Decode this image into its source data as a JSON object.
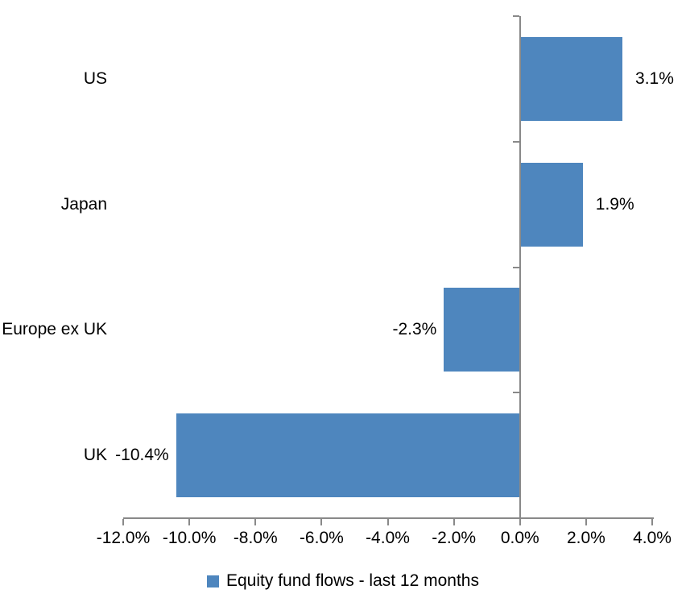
{
  "chart_data": {
    "type": "bar",
    "orientation": "horizontal",
    "title": "",
    "categories": [
      "US",
      "Japan",
      "Europe ex UK",
      "UK"
    ],
    "series": [
      {
        "name": "Equity fund flows - last 12 months",
        "values": [
          3.1,
          1.9,
          -2.3,
          -10.4
        ]
      }
    ],
    "data_labels": [
      "3.1%",
      "1.9%",
      "-2.3%",
      "-10.4%"
    ],
    "x_axis": {
      "min": -12,
      "max": 4,
      "tick_values": [
        -12,
        -10,
        -8,
        -6,
        -4,
        -2,
        0,
        2,
        4
      ],
      "tick_labels": [
        "-12.0%",
        "-10.0%",
        "-8.0%",
        "-6.0%",
        "-4.0%",
        "-2.0%",
        "0.0%",
        "2.0%",
        "4.0%"
      ]
    },
    "legend": {
      "position": "bottom",
      "label": "Equity fund flows - last 12 months"
    },
    "colors": {
      "bar": "#4E86BE",
      "axis": "#898989",
      "text": "#000000",
      "background": "#FFFFFF"
    },
    "grid": "off"
  }
}
